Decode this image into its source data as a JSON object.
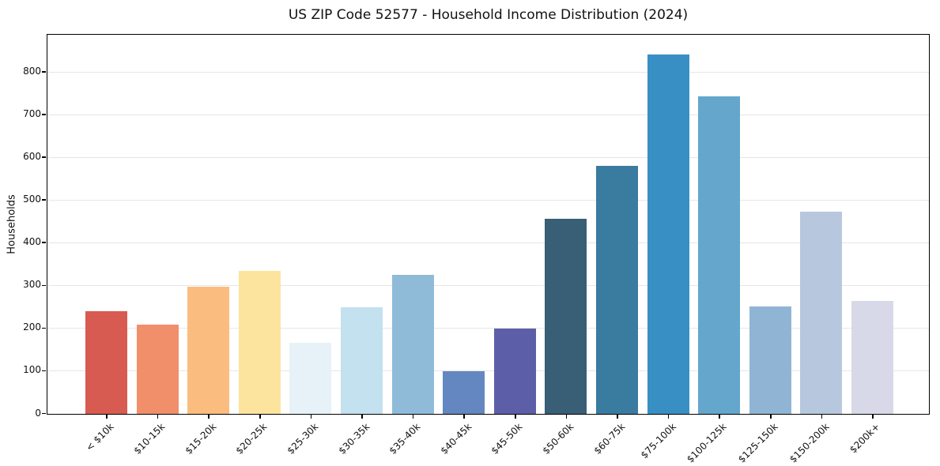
{
  "chart_data": {
    "type": "bar",
    "title": "US ZIP Code 52577 - Household Income Distribution (2024)",
    "xlabel": "",
    "ylabel": "Households",
    "categories": [
      "< $10k",
      "$10-15k",
      "$15-20k",
      "$20-25k",
      "$25-30k",
      "$30-35k",
      "$35-40k",
      "$40-45k",
      "$45-50k",
      "$50-60k",
      "$60-75k",
      "$75-100k",
      "$100-125k",
      "$125-150k",
      "$150-200k",
      "$200k+"
    ],
    "values": [
      240,
      209,
      298,
      334,
      167,
      249,
      325,
      99,
      199,
      456,
      581,
      842,
      743,
      251,
      473,
      264
    ],
    "bar_colors": [
      "#d85b52",
      "#f28f6b",
      "#fabd7f",
      "#fde49e",
      "#e7f2f8",
      "#c3e1ee",
      "#8fbbd9",
      "#6487c1",
      "#5c5fa8",
      "#385f75",
      "#3a7ba0",
      "#388fc4",
      "#64a6cc",
      "#90b5d4",
      "#b7c8de",
      "#d7d9e8"
    ],
    "yticks": [
      0,
      100,
      200,
      300,
      400,
      500,
      600,
      700,
      800
    ],
    "ylim": [
      0,
      886
    ],
    "grid": "horizontal",
    "legend": "none",
    "background_color": "#ffffff",
    "axes_color": "#000000",
    "gridline_color": "#e6e6e6",
    "text_color": "#111111",
    "xtick_rotation_deg": 45
  }
}
